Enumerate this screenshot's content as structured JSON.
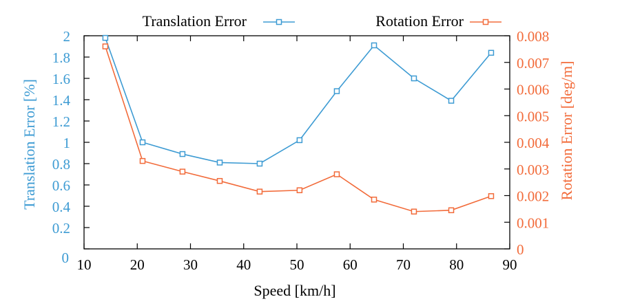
{
  "chart_data": {
    "type": "line",
    "title": "",
    "xlabel": "Speed [km/h]",
    "ylabel": "Translation Error [%]",
    "y2label": "Rotation Error [deg/m]",
    "xlim": [
      10,
      90
    ],
    "ylim": [
      0,
      2
    ],
    "y2lim": [
      0,
      0.008
    ],
    "x_ticks": [
      "10",
      "20",
      "30",
      "40",
      "50",
      "60",
      "70",
      "80",
      "90"
    ],
    "y_ticks": [
      "0",
      "0.2",
      "0.4",
      "0.6",
      "0.8",
      "1",
      "1.2",
      "1.4",
      "1.6",
      "1.8",
      "2"
    ],
    "y2_ticks": [
      "0",
      "0.001",
      "0.002",
      "0.003",
      "0.004",
      "0.005",
      "0.006",
      "0.007",
      "0.008"
    ],
    "grid": false,
    "legend_position": "top",
    "x": [
      14,
      21,
      28.5,
      35.5,
      43,
      50.5,
      57.5,
      64.5,
      72,
      79,
      86.5
    ],
    "series": [
      {
        "name": "Translation Error",
        "axis": "left",
        "color": "#3d9bd3",
        "marker": "square",
        "values": [
          1.98,
          1.0,
          0.89,
          0.81,
          0.8,
          1.02,
          1.48,
          1.91,
          1.6,
          1.39,
          1.84
        ]
      },
      {
        "name": "Rotation Error",
        "axis": "right",
        "color": "#f26b3a",
        "marker": "square",
        "values": [
          0.0076,
          0.0033,
          0.0029,
          0.00255,
          0.00215,
          0.0022,
          0.0028,
          0.00185,
          0.0014,
          0.00145,
          0.00198
        ]
      }
    ]
  }
}
